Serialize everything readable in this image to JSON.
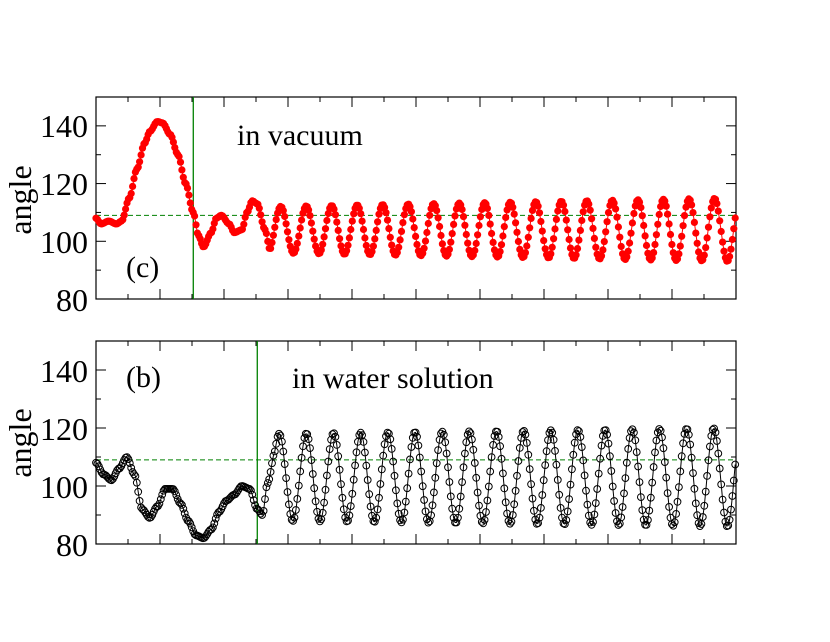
{
  "colors": {
    "vacuum_marker": "#ff0000",
    "water_marker": "#000000",
    "reference": "#008000",
    "frame": "#000000"
  },
  "chart_data": [
    {
      "id": "panel_c",
      "type": "scatter",
      "panel_label": "(c)",
      "annotation": "in vacuum",
      "ylabel": "angle",
      "ylim": [
        80,
        150
      ],
      "yticks": [
        80,
        100,
        120,
        140
      ],
      "xlim": [
        0,
        250
      ],
      "x_tick_labels": [],
      "marker": "filled-circle",
      "reference_line": {
        "y": 109,
        "style": "dashed"
      },
      "vertical_line": {
        "x": 38
      },
      "control_points": [
        [
          0,
          108
        ],
        [
          2,
          106
        ],
        [
          5,
          107
        ],
        [
          8,
          106
        ],
        [
          10,
          107
        ],
        [
          13,
          115
        ],
        [
          16,
          125
        ],
        [
          19,
          134
        ],
        [
          21,
          138
        ],
        [
          24,
          141.5
        ],
        [
          26,
          141
        ],
        [
          29,
          137
        ],
        [
          32,
          130
        ],
        [
          35,
          120
        ],
        [
          38,
          110
        ],
        [
          40,
          102
        ],
        [
          42,
          98
        ],
        [
          45,
          103
        ],
        [
          47,
          108
        ],
        [
          49,
          109
        ],
        [
          52,
          106
        ],
        [
          54,
          103
        ],
        [
          57,
          104
        ],
        [
          59,
          110
        ],
        [
          61,
          114
        ],
        [
          63,
          113
        ],
        [
          66,
          104
        ],
        [
          68,
          97
        ]
      ],
      "oscillation": {
        "x_start": 68,
        "x_end": 250,
        "period": 10,
        "center": 104,
        "amplitude_start": 8,
        "amplitude_end": 11
      }
    },
    {
      "id": "panel_b",
      "type": "scatter",
      "panel_label": "(b)",
      "annotation": "in water solution",
      "ylabel": "angle",
      "ylim": [
        80,
        150
      ],
      "yticks": [
        80,
        100,
        120,
        140
      ],
      "xlim": [
        0,
        250
      ],
      "x_tick_labels": [],
      "marker": "open-circle",
      "reference_line": {
        "y": 109,
        "style": "dashed"
      },
      "vertical_line": {
        "x": 63
      },
      "control_points": [
        [
          0,
          108
        ],
        [
          3,
          104
        ],
        [
          6,
          102
        ],
        [
          9,
          106
        ],
        [
          12,
          110
        ],
        [
          15,
          104
        ],
        [
          18,
          92
        ],
        [
          21,
          89
        ],
        [
          24,
          93
        ],
        [
          27,
          99
        ],
        [
          30,
          99
        ],
        [
          33,
          94
        ],
        [
          36,
          88
        ],
        [
          39,
          83
        ],
        [
          42,
          82
        ],
        [
          45,
          85
        ],
        [
          48,
          91
        ],
        [
          51,
          95
        ],
        [
          54,
          97
        ],
        [
          57,
          100
        ],
        [
          60,
          99
        ],
        [
          63,
          92
        ],
        [
          65,
          90
        ],
        [
          67,
          101
        ],
        [
          70,
          112
        ]
      ],
      "oscillation": {
        "x_start": 70,
        "x_end": 250,
        "period": 10.6,
        "center": 103,
        "amplitude_start": 15,
        "amplitude_end": 17
      }
    }
  ]
}
